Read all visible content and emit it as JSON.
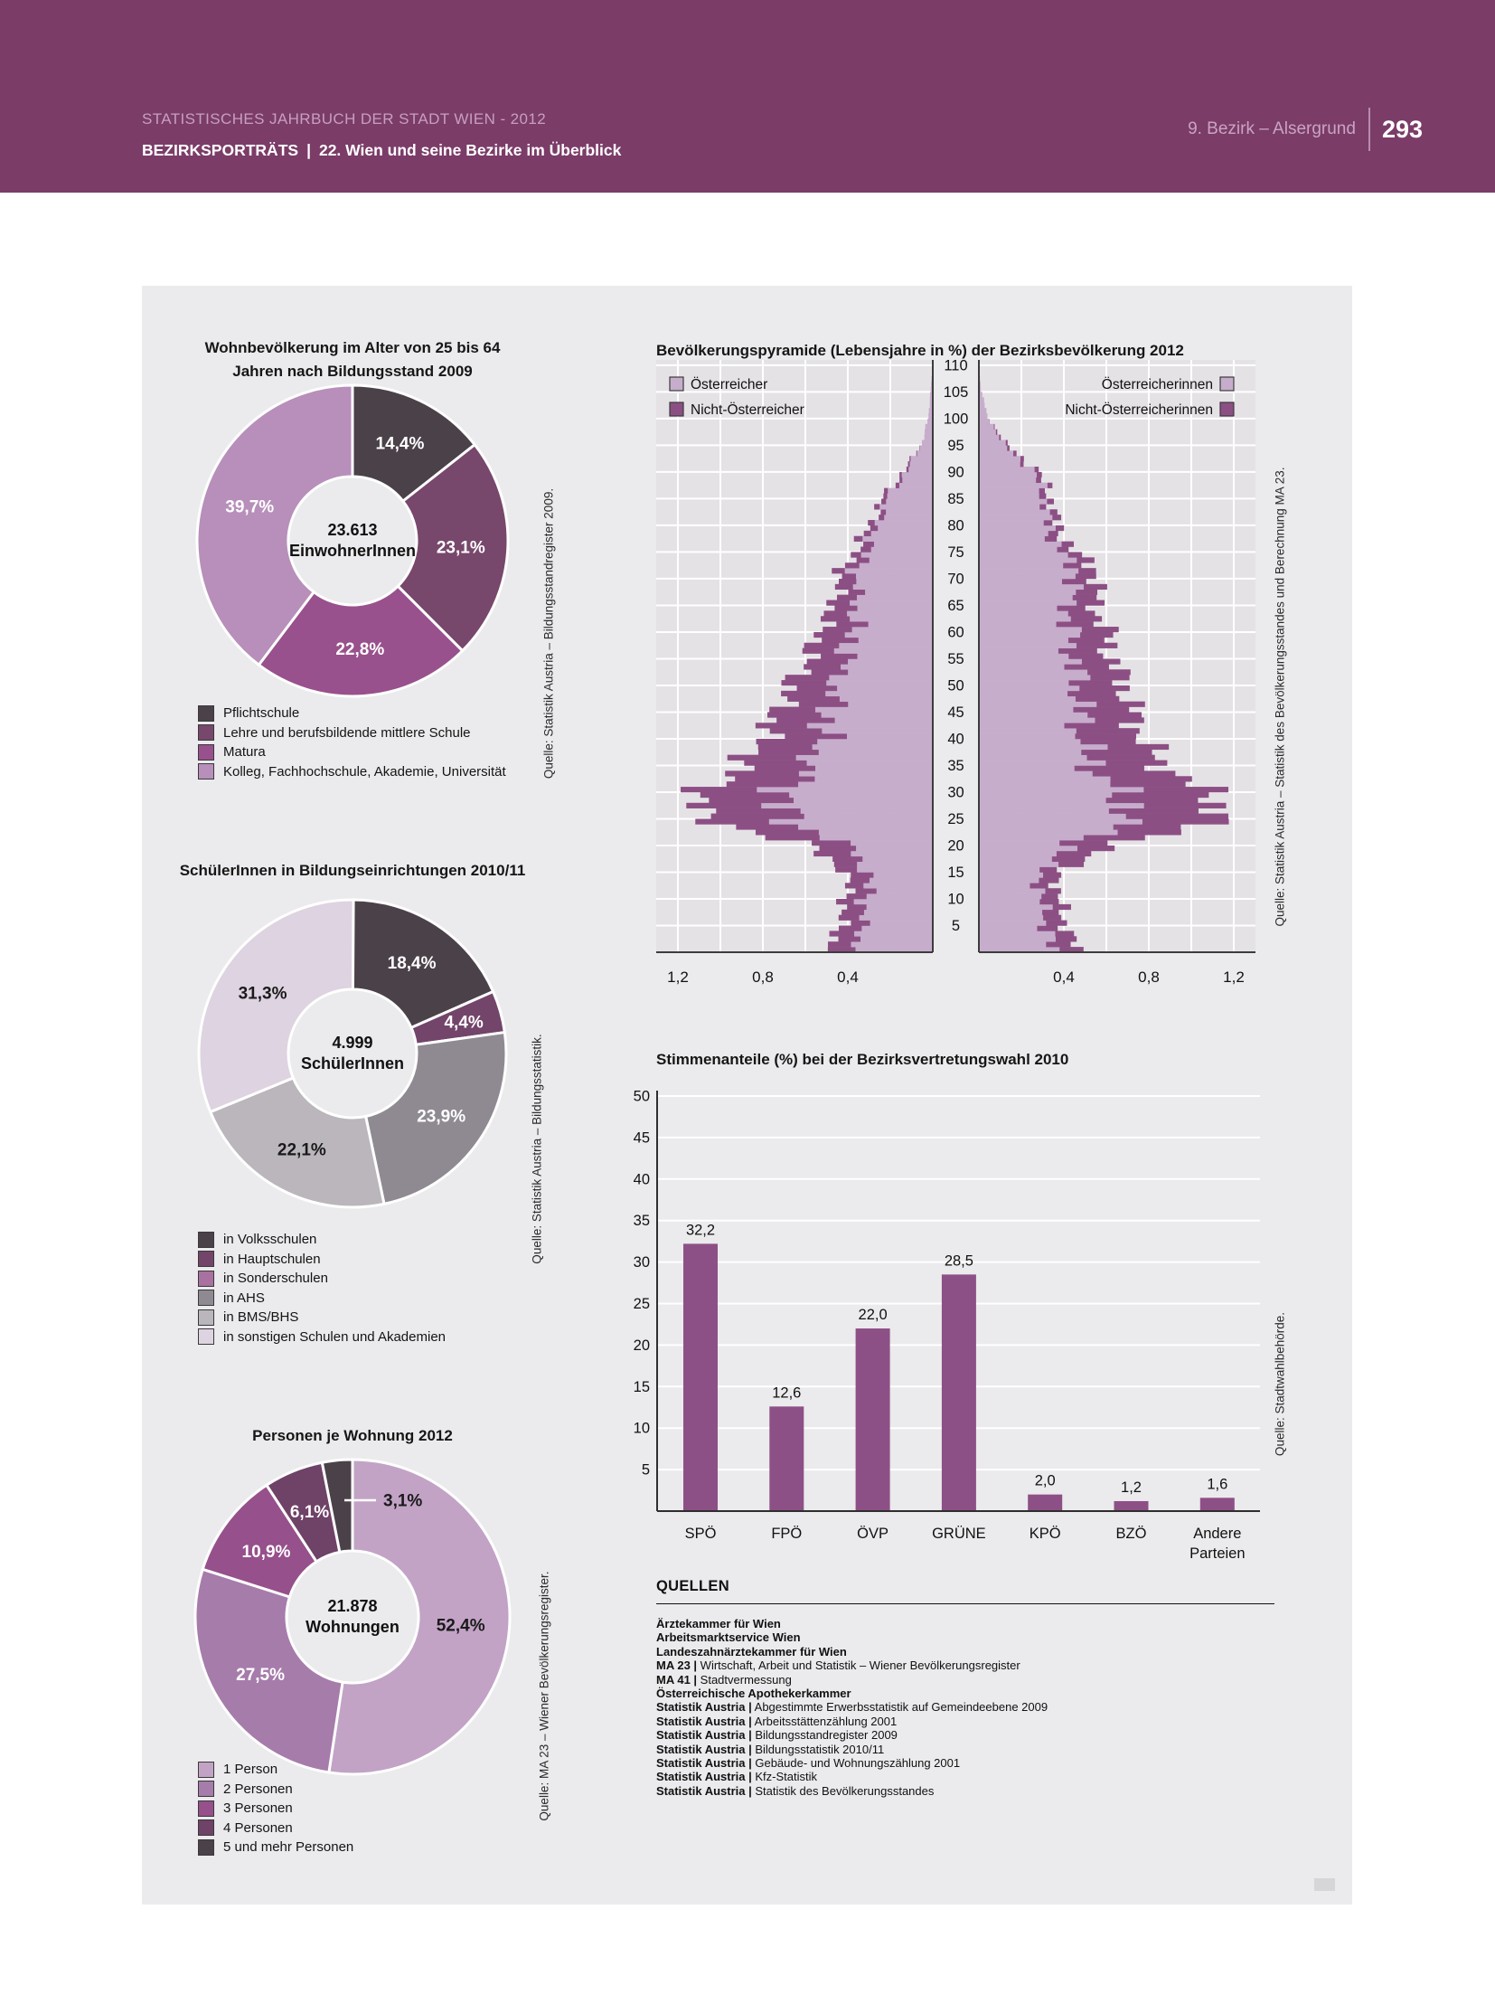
{
  "header": {
    "line1": "STATISTISCHES JAHRBUCH DER STADT WIEN - 2012",
    "line2_bold": "BEZIRKSPORTRÄTS",
    "line2_sep": "|",
    "line2_rest": "22. Wien und seine Bezirke im Überblick",
    "district": "9. Bezirk – Alsergrund",
    "page_number": "293",
    "band_color": "#7b3c68"
  },
  "theme": {
    "panel_bg": "#ebeaec",
    "plot_bg": "#e5e2e6",
    "grid_color": "#ffffff",
    "axis_color": "#3c3c3c"
  },
  "chart_data": [
    {
      "id": "education",
      "type": "donut",
      "title_lines": [
        "Wohnbevölkerung im Alter von 25 bis 64",
        "Jahren nach Bildungsstand 2009"
      ],
      "center_value": "23.613",
      "center_label": "EinwohnerInnen",
      "source": "Quelle: Statistik Austria – Bildungsstandregister 2009.",
      "segments": [
        {
          "label": "Pflichtschule",
          "value": 14.4,
          "display": "14,4%",
          "color": "#4b4149",
          "text_color": "#ffffff"
        },
        {
          "label": "Lehre und berufsbildende mittlere Schule",
          "value": 23.1,
          "display": "23,1%",
          "color": "#78476c",
          "text_color": "#ffffff"
        },
        {
          "label": "Matura",
          "value": 22.8,
          "display": "22,8%",
          "color": "#98518c",
          "text_color": "#ffffff"
        },
        {
          "label": "Kolleg, Fachhochschule, Akademie, Universität",
          "value": 39.7,
          "display": "39,7%",
          "color": "#b78fba",
          "text_color": "#ffffff"
        }
      ]
    },
    {
      "id": "pyramid",
      "type": "population-pyramid",
      "title": "Bevölkerungspyramide (Lebensjahre in %) der Bezirksbevölkerung 2012",
      "source": "Quelle: Statistik Austria – Statistik des Bevölkerungsstandes und Berechnung MA 23.",
      "legend_left": [
        {
          "label": "Österreicher",
          "color": "#c7adcc"
        },
        {
          "label": "Nicht-Österreicher",
          "color": "#8c4f84"
        }
      ],
      "legend_right": [
        {
          "label": "Österreicherinnen",
          "color": "#c7adcc"
        },
        {
          "label": "Nicht-Österreicherinnen",
          "color": "#8c4f84"
        }
      ],
      "colors": {
        "austrian": "#c7adcc",
        "foreign": "#8c4f84"
      },
      "x_max": 1.3,
      "x_ticks": [
        {
          "label": "0,4",
          "v": 0.4
        },
        {
          "label": "0,8",
          "v": 0.8
        },
        {
          "label": "1,2",
          "v": 1.2
        }
      ],
      "age_tick_step": 5,
      "age_max": 110,
      "anchor_ages": [
        0,
        5,
        10,
        15,
        20,
        25,
        30,
        35,
        40,
        45,
        50,
        55,
        60,
        65,
        70,
        75,
        80,
        85,
        90,
        95,
        100,
        105,
        110
      ],
      "male_total": [
        0.47,
        0.44,
        0.4,
        0.41,
        0.62,
        1.13,
        1.06,
        0.88,
        0.79,
        0.73,
        0.66,
        0.58,
        0.53,
        0.46,
        0.44,
        0.36,
        0.29,
        0.23,
        0.13,
        0.05,
        0.02,
        0.01,
        0.0
      ],
      "male_foreign": [
        0.12,
        0.1,
        0.09,
        0.1,
        0.2,
        0.4,
        0.38,
        0.3,
        0.27,
        0.24,
        0.2,
        0.17,
        0.15,
        0.1,
        0.07,
        0.05,
        0.03,
        0.02,
        0.01,
        0.0,
        0.0,
        0.0,
        0.0
      ],
      "female_total": [
        0.45,
        0.41,
        0.37,
        0.38,
        0.68,
        1.18,
        1.05,
        0.85,
        0.76,
        0.72,
        0.68,
        0.62,
        0.6,
        0.54,
        0.57,
        0.44,
        0.36,
        0.34,
        0.27,
        0.12,
        0.04,
        0.01,
        0.0
      ],
      "female_foreign": [
        0.11,
        0.09,
        0.08,
        0.09,
        0.22,
        0.44,
        0.41,
        0.32,
        0.28,
        0.24,
        0.21,
        0.18,
        0.17,
        0.12,
        0.1,
        0.06,
        0.04,
        0.03,
        0.02,
        0.01,
        0.0,
        0.0,
        0.0
      ]
    },
    {
      "id": "pupils",
      "type": "donut",
      "title_lines": [
        "SchülerInnen in Bildungseinrichtungen 2010/11"
      ],
      "center_value": "4.999",
      "center_label": "SchülerInnen",
      "source": "Quelle: Statistik Austria – Bildungsstatistik.",
      "segments": [
        {
          "label": "in Volksschulen",
          "value": 18.4,
          "display": "18,4%",
          "color": "#4b4149",
          "text_color": "#ffffff"
        },
        {
          "label": "in Hauptschulen",
          "value": 4.4,
          "display": "4,4%",
          "color": "#73456a",
          "text_color": "#ffffff",
          "label_r": 128
        },
        {
          "label": "in Sonderschulen",
          "value": 0.0,
          "display": "",
          "color": "#a8719f",
          "text_color": "#ffffff"
        },
        {
          "label": "in AHS",
          "value": 23.9,
          "display": "23,9%",
          "color": "#8f8a92",
          "text_color": "#ffffff"
        },
        {
          "label": "in BMS/BHS",
          "value": 22.1,
          "display": "22,1%",
          "color": "#bab6bc",
          "text_color": "#1a1a1a"
        },
        {
          "label": "in sonstigen Schulen und Akademien",
          "value": 31.3,
          "display": "31,3%",
          "color": "#ded3e0",
          "text_color": "#1a1a1a"
        }
      ]
    },
    {
      "id": "election",
      "type": "bar",
      "title": "Stimmenanteile (%) bei der Bezirksvertretungswahl 2010",
      "source": "Quelle: Stadtwahlbehörde.",
      "categories": [
        "SPÖ",
        "FPÖ",
        "ÖVP",
        "GRÜNE",
        "KPÖ",
        "BZÖ",
        "Andere\nParteien"
      ],
      "values": [
        32.2,
        12.6,
        22.0,
        28.5,
        2.0,
        1.2,
        1.6
      ],
      "display_values": [
        "32,2",
        "12,6",
        "22,0",
        "28,5",
        "2,0",
        "1,2",
        "1,6"
      ],
      "bar_color": "#8d5086",
      "ylim": [
        0,
        50
      ],
      "y_tick_step": 5
    },
    {
      "id": "apartments",
      "type": "donut",
      "title_lines": [
        "Personen je Wohnung 2012"
      ],
      "center_value": "21.878",
      "center_label": "Wohnungen",
      "source": "Quelle: MA 23 – Wiener Bevölkerungsregister.",
      "segments": [
        {
          "label": "1 Person",
          "value": 52.4,
          "display": "52,4%",
          "color": "#c2a3c6",
          "text_color": "#1a1a1a"
        },
        {
          "label": "2 Personen",
          "value": 27.5,
          "display": "27,5%",
          "color": "#a67cab",
          "text_color": "#ffffff"
        },
        {
          "label": "3 Personen",
          "value": 10.9,
          "display": "10,9%",
          "color": "#96508b",
          "text_color": "#ffffff"
        },
        {
          "label": "4 Personen",
          "value": 6.1,
          "display": "6,1%",
          "color": "#6f4267",
          "text_color": "#ffffff",
          "label_r": 126
        },
        {
          "label": "5 und mehr Personen",
          "value": 3.1,
          "display": "3,1%",
          "color": "#4b4149",
          "text_color": "#1a1a1a",
          "outside": true
        }
      ]
    }
  ],
  "quellen": {
    "heading": "QUELLEN",
    "sources": [
      {
        "bold": "Ärztekammer für Wien",
        "rest": ""
      },
      {
        "bold": "Arbeitsmarktservice Wien",
        "rest": ""
      },
      {
        "bold": "Landeszahnärztekammer für Wien",
        "rest": ""
      },
      {
        "bold": "MA 23 |",
        "rest": " Wirtschaft, Arbeit und Statistik – Wiener Bevölkerungsregister"
      },
      {
        "bold": "MA 41 |",
        "rest": " Stadtvermessung"
      },
      {
        "bold": "Österreichische Apothekerkammer",
        "rest": ""
      },
      {
        "bold": "Statistik Austria |",
        "rest": " Abgestimmte Erwerbsstatistik auf Gemeindeebene 2009"
      },
      {
        "bold": "Statistik Austria |",
        "rest": " Arbeitsstättenzählung 2001"
      },
      {
        "bold": "Statistik Austria |",
        "rest": " Bildungsstandregister 2009"
      },
      {
        "bold": "Statistik Austria |",
        "rest": " Bildungsstatistik 2010/11"
      },
      {
        "bold": "Statistik Austria |",
        "rest": " Gebäude- und Wohnungszählung 2001"
      },
      {
        "bold": "Statistik Austria |",
        "rest": " Kfz-Statistik"
      },
      {
        "bold": "Statistik Austria |",
        "rest": " Statistik des Bevölkerungsstandes"
      }
    ]
  }
}
